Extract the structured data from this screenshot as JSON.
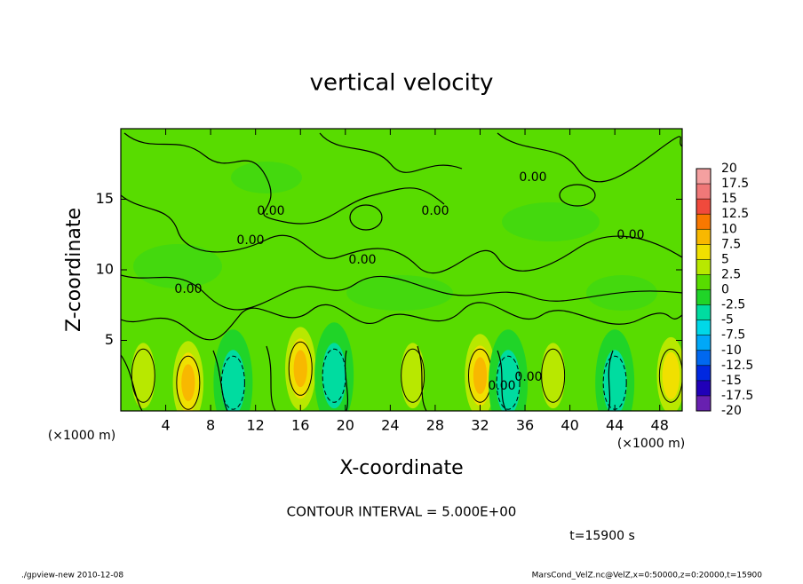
{
  "chart_data": {
    "type": "contour",
    "title": "vertical velocity",
    "x_label": "X-coordinate",
    "y_label": "Z-coordinate",
    "x_unit": "(×1000 m)",
    "y_unit": "(×1000 m)",
    "xlim": [
      0,
      50
    ],
    "ylim": [
      0,
      20
    ],
    "xticks": [
      4,
      8,
      12,
      16,
      20,
      24,
      28,
      32,
      36,
      40,
      44,
      48
    ],
    "yticks": [
      5,
      10,
      15
    ],
    "levels": [
      20,
      17.5,
      15,
      12.5,
      10,
      7.5,
      5,
      2.5,
      0,
      -2.5,
      -5,
      -7.5,
      -10,
      -12.5,
      -15,
      -17.5,
      -20
    ],
    "colors": [
      "#f4a0a0",
      "#f07878",
      "#f04a3c",
      "#f87800",
      "#f8b800",
      "#f0e000",
      "#b8e800",
      "#58dc00",
      "#20d428",
      "#00dca0",
      "#00d8e8",
      "#00a8f8",
      "#0068f0",
      "#0028e0",
      "#2000b8",
      "#6820b0"
    ],
    "blobs": [
      {
        "x": 6,
        "z": 2,
        "value": 8
      },
      {
        "x": 16,
        "z": 3,
        "value": 10
      },
      {
        "x": 32,
        "z": 2.5,
        "value": 10
      },
      {
        "x": 49,
        "z": 2.5,
        "value": 6
      },
      {
        "x": 38.5,
        "z": 2.5,
        "value": 4
      },
      {
        "x": 10,
        "z": 2,
        "value": -4
      },
      {
        "x": 19,
        "z": 2.5,
        "value": -3
      },
      {
        "x": 34.5,
        "z": 2,
        "value": -5
      },
      {
        "x": 44,
        "z": 2,
        "value": -4
      },
      {
        "x": 2,
        "z": 2.5,
        "value": 3
      },
      {
        "x": 26,
        "z": 2.5,
        "value": 3
      }
    ],
    "contour_labels": [
      "0.00",
      "0.00",
      "0.00",
      "0.00",
      "0.00",
      "0.00",
      "0.00",
      "0.00",
      "0.00"
    ],
    "contour_interval": "CONTOUR INTERVAL = 5.000E+00",
    "time": "t=15900 s",
    "footer_left": "./gpview-new  2010-12-08",
    "footer_right": "MarsCond_VelZ.nc@VelZ,x=0:50000,z=0:20000,t=15900"
  }
}
